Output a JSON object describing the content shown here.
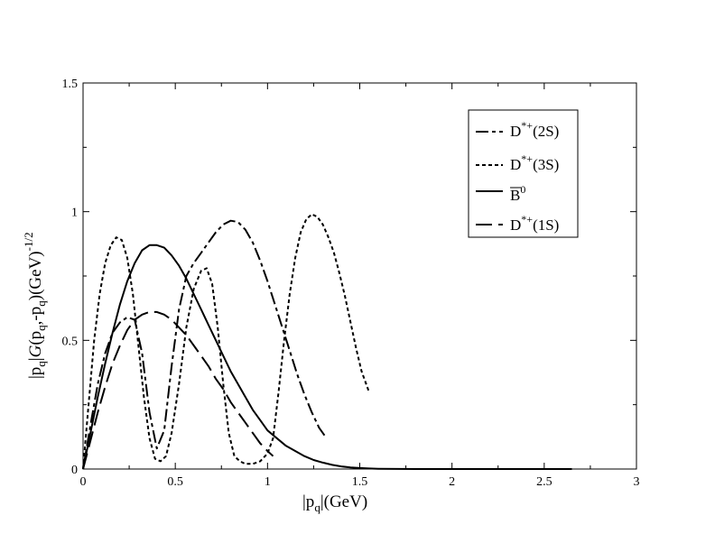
{
  "chart_data": {
    "type": "line",
    "xlabel": "|p_q|(GeV)",
    "ylabel": "|p_q|G(p_q,-p_q)(GeV)^-1/2",
    "xlim": [
      0,
      3
    ],
    "ylim": [
      0,
      1.5
    ],
    "x_ticks": [
      "0",
      "0.5",
      "1",
      "1.5",
      "2",
      "2.5",
      "3"
    ],
    "y_ticks": [
      "0",
      "0.5",
      "1",
      "1.5"
    ],
    "grid": false,
    "legend_position": "top-right",
    "series": [
      {
        "name": "D*+(2S)",
        "style": "dashdot",
        "x": [
          0,
          0.04,
          0.08,
          0.12,
          0.16,
          0.2,
          0.24,
          0.28,
          0.32,
          0.36,
          0.4,
          0.44,
          0.48,
          0.52,
          0.56,
          0.6,
          0.64,
          0.68,
          0.72,
          0.76,
          0.8,
          0.84,
          0.88,
          0.92,
          0.96,
          1.0,
          1.04,
          1.08,
          1.12,
          1.16,
          1.2,
          1.24,
          1.28,
          1.32
        ],
        "y": [
          0,
          0.17,
          0.33,
          0.45,
          0.53,
          0.57,
          0.59,
          0.58,
          0.45,
          0.22,
          0.08,
          0.15,
          0.4,
          0.62,
          0.75,
          0.8,
          0.84,
          0.88,
          0.92,
          0.95,
          0.965,
          0.96,
          0.93,
          0.88,
          0.81,
          0.73,
          0.64,
          0.55,
          0.46,
          0.37,
          0.29,
          0.22,
          0.16,
          0.12
        ]
      },
      {
        "name": "D*+(3S)",
        "style": "dotted",
        "x": [
          0,
          0.03,
          0.06,
          0.09,
          0.12,
          0.15,
          0.18,
          0.21,
          0.24,
          0.27,
          0.3,
          0.33,
          0.36,
          0.39,
          0.42,
          0.45,
          0.48,
          0.52,
          0.56,
          0.6,
          0.64,
          0.67,
          0.7,
          0.73,
          0.76,
          0.79,
          0.82,
          0.85,
          0.88,
          0.92,
          0.96,
          1.0,
          1.03,
          1.06,
          1.09,
          1.12,
          1.15,
          1.18,
          1.21,
          1.24,
          1.27,
          1.3,
          1.33,
          1.36,
          1.39,
          1.42,
          1.45,
          1.48,
          1.51,
          1.55
        ],
        "y": [
          0,
          0.25,
          0.5,
          0.68,
          0.8,
          0.87,
          0.9,
          0.89,
          0.82,
          0.68,
          0.48,
          0.28,
          0.12,
          0.04,
          0.03,
          0.05,
          0.14,
          0.33,
          0.55,
          0.7,
          0.77,
          0.78,
          0.72,
          0.55,
          0.33,
          0.14,
          0.05,
          0.03,
          0.02,
          0.02,
          0.03,
          0.06,
          0.12,
          0.3,
          0.5,
          0.68,
          0.82,
          0.92,
          0.97,
          0.99,
          0.98,
          0.95,
          0.9,
          0.84,
          0.76,
          0.67,
          0.57,
          0.47,
          0.38,
          0.3
        ]
      },
      {
        "name": "B0",
        "style": "solid",
        "x": [
          0,
          0.04,
          0.08,
          0.12,
          0.16,
          0.2,
          0.24,
          0.28,
          0.32,
          0.36,
          0.4,
          0.44,
          0.48,
          0.52,
          0.56,
          0.6,
          0.64,
          0.68,
          0.72,
          0.76,
          0.8,
          0.84,
          0.88,
          0.92,
          0.96,
          1.0,
          1.05,
          1.1,
          1.15,
          1.2,
          1.25,
          1.3,
          1.35,
          1.4,
          1.45,
          1.5,
          1.55,
          1.6,
          1.8,
          2.0,
          2.2,
          2.4,
          2.6,
          2.65
        ],
        "y": [
          0,
          0.14,
          0.28,
          0.41,
          0.53,
          0.64,
          0.73,
          0.8,
          0.85,
          0.87,
          0.87,
          0.86,
          0.83,
          0.79,
          0.74,
          0.68,
          0.62,
          0.56,
          0.5,
          0.44,
          0.38,
          0.33,
          0.28,
          0.23,
          0.19,
          0.15,
          0.12,
          0.09,
          0.07,
          0.05,
          0.035,
          0.025,
          0.016,
          0.01,
          0.006,
          0.004,
          0.002,
          0.001,
          0.0,
          0.0,
          0.0,
          0.0,
          0.0,
          0.0
        ]
      },
      {
        "name": "D*+(1S)",
        "style": "longdash",
        "x": [
          0,
          0.04,
          0.08,
          0.12,
          0.16,
          0.2,
          0.24,
          0.28,
          0.32,
          0.36,
          0.4,
          0.44,
          0.48,
          0.52,
          0.56,
          0.6,
          0.64,
          0.68,
          0.72,
          0.76,
          0.8,
          0.84,
          0.88,
          0.92,
          0.96,
          1.0,
          1.03
        ],
        "y": [
          0,
          0.11,
          0.22,
          0.32,
          0.41,
          0.48,
          0.54,
          0.58,
          0.6,
          0.61,
          0.61,
          0.6,
          0.58,
          0.55,
          0.52,
          0.48,
          0.44,
          0.4,
          0.35,
          0.31,
          0.26,
          0.22,
          0.18,
          0.14,
          0.1,
          0.07,
          0.05
        ]
      }
    ],
    "legend": [
      {
        "label": "D*+(2S)",
        "style": "dashdot"
      },
      {
        "label": "D*+(3S)",
        "style": "dotted"
      },
      {
        "label": "B0",
        "style": "solid"
      },
      {
        "label": "D*+(1S)",
        "style": "longdash"
      }
    ]
  }
}
